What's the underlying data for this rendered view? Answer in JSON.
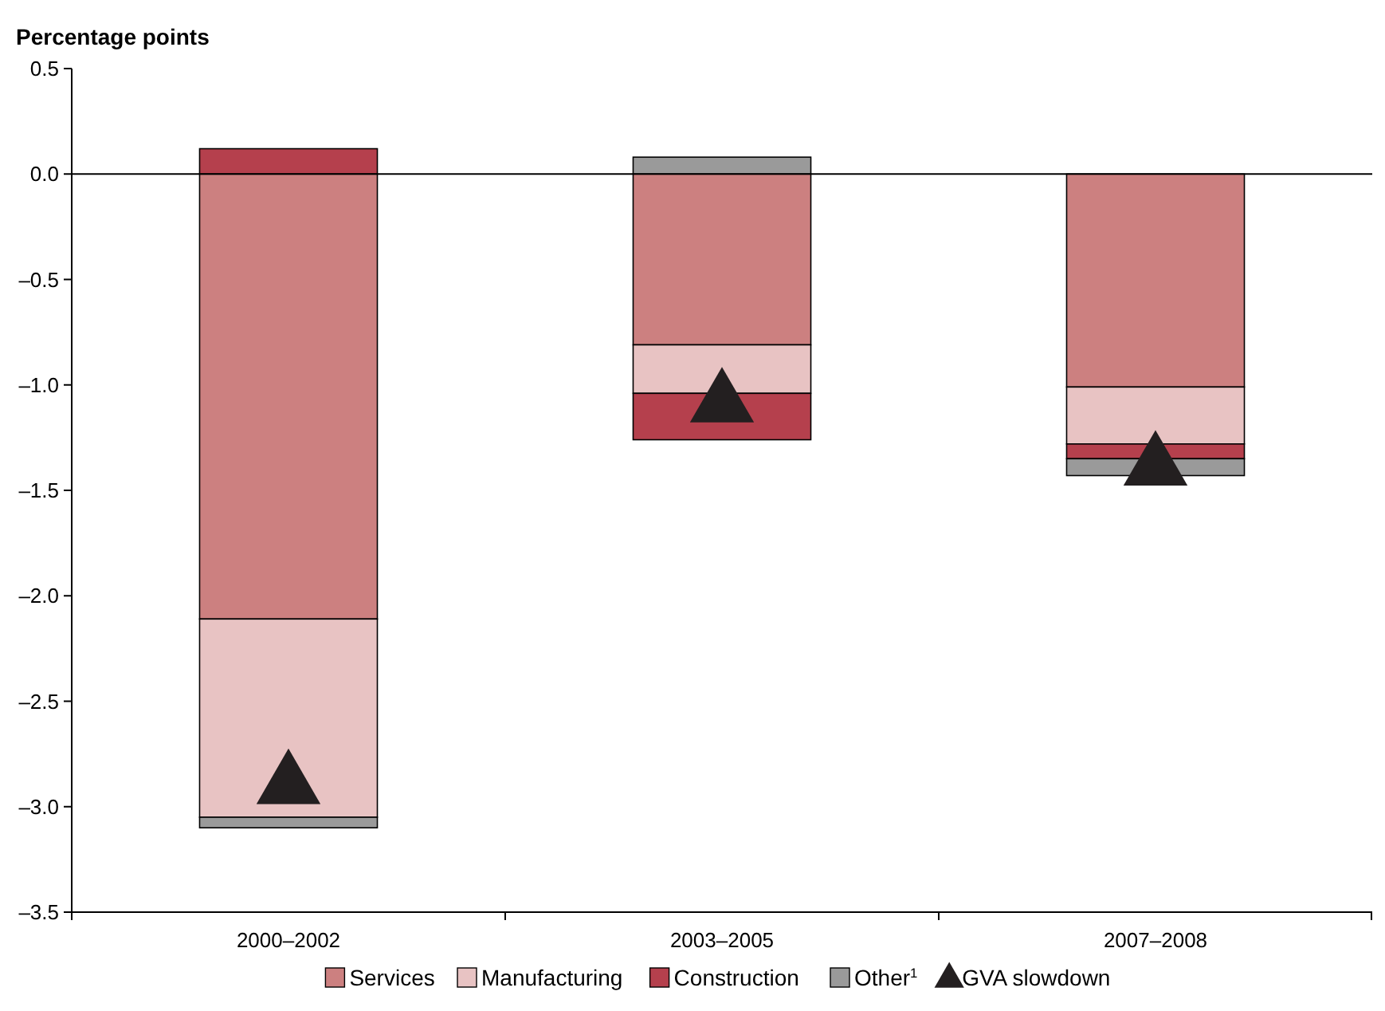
{
  "chart_data": {
    "type": "bar",
    "ylabel": "Percentage points",
    "categories": [
      "2000–2002",
      "2003–2005",
      "2007–2008"
    ],
    "stacked": true,
    "ylim": [
      -3.5,
      0.5
    ],
    "yticks": [
      {
        "value": 0.5,
        "label": "0.5"
      },
      {
        "value": 0,
        "label": "0.0"
      },
      {
        "value": -0.5,
        "label": "–0.5"
      },
      {
        "value": -1,
        "label": "–1.0"
      },
      {
        "value": -1.5,
        "label": "–1.5"
      },
      {
        "value": -2,
        "label": "–2.0"
      },
      {
        "value": -2.5,
        "label": "–2.5"
      },
      {
        "value": -3,
        "label": "–3.0"
      },
      {
        "value": -3.5,
        "label": "–3.5"
      }
    ],
    "grid": false,
    "legend": "bottom",
    "ref_lines": [
      {
        "axis": "y",
        "value": 0,
        "color": "#000000"
      }
    ],
    "series": [
      {
        "name": "Services",
        "color": "#cc8080",
        "values": [
          -2.11,
          -0.81,
          -1.01
        ]
      },
      {
        "name": "Manufacturing",
        "color": "#e8c3c3",
        "values": [
          -0.94,
          -0.23,
          -0.27
        ]
      },
      {
        "name": "Construction",
        "color": "#b5404d",
        "values": [
          0.12,
          -0.22,
          -0.07
        ]
      },
      {
        "name": "Other$^{1}$",
        "color": "#9a9a9a",
        "values": [
          -0.05,
          0.08,
          -0.08
        ]
      },
      {
        "name": "GVA slowdown",
        "type": "scatter",
        "marker": "triangle",
        "color": "#231f20",
        "x": [
          "2000–2002",
          "2003–2005",
          "2007–2008"
        ],
        "values": [
          -2.9,
          -1.09,
          -1.39
        ]
      }
    ]
  }
}
